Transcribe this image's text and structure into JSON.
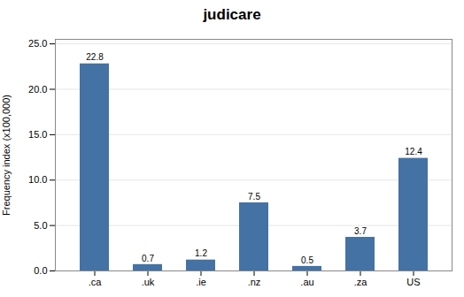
{
  "chart_data": {
    "type": "bar",
    "title": "judicare",
    "categories": [
      ".ca",
      ".uk",
      ".ie",
      ".nz",
      ".au",
      ".za",
      "US"
    ],
    "values": [
      22.8,
      0.7,
      1.2,
      7.5,
      0.5,
      3.7,
      12.4
    ],
    "color": "#4472a4",
    "ylabel": "Frequency index (x100,000)",
    "ylim": [
      0,
      25.5
    ],
    "yticks": [
      {
        "value": 0.0,
        "label": "0.0"
      },
      {
        "value": 5.0,
        "label": "5.0"
      },
      {
        "value": 10.0,
        "label": "10.0"
      },
      {
        "value": 15.0,
        "label": "15.0"
      },
      {
        "value": 20.0,
        "label": "20.0"
      },
      {
        "value": 25.0,
        "label": "25.0"
      }
    ],
    "grid": true,
    "data_labels": true
  }
}
